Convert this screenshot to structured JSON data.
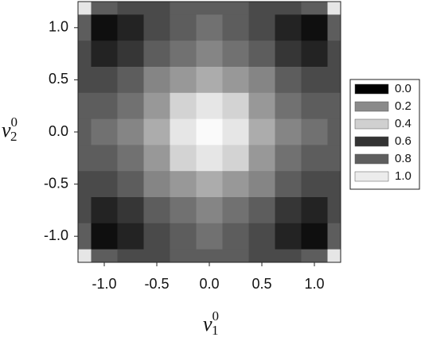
{
  "chart_data": {
    "type": "contour",
    "xlabel": {
      "text": "v",
      "sub": "1",
      "sup": "0"
    },
    "ylabel": {
      "text": "v",
      "sub": "2",
      "sup": "0"
    },
    "x": [
      -1.25,
      -1,
      -0.75,
      -0.5,
      -0.25,
      0,
      0.25,
      0.5,
      0.75,
      1,
      1.25
    ],
    "y": [
      1.25,
      1,
      0.75,
      0.5,
      0.25,
      0,
      -0.25,
      -0.5,
      -0.75,
      -1,
      -1.25
    ],
    "z": [
      [
        0.95,
        0.4,
        0.25,
        0.3,
        0.36,
        0.4,
        0.36,
        0.3,
        0.25,
        0.4,
        0.95
      ],
      [
        0.4,
        0.05,
        0.1,
        0.25,
        0.38,
        0.42,
        0.38,
        0.25,
        0.1,
        0.05,
        0.4
      ],
      [
        0.25,
        0.1,
        0.18,
        0.35,
        0.48,
        0.52,
        0.48,
        0.35,
        0.18,
        0.1,
        0.25
      ],
      [
        0.3,
        0.25,
        0.35,
        0.52,
        0.66,
        0.72,
        0.66,
        0.52,
        0.35,
        0.25,
        0.3
      ],
      [
        0.36,
        0.38,
        0.48,
        0.66,
        0.85,
        0.92,
        0.85,
        0.66,
        0.48,
        0.38,
        0.36
      ],
      [
        0.4,
        0.42,
        0.52,
        0.72,
        0.92,
        1.0,
        0.92,
        0.72,
        0.52,
        0.42,
        0.4
      ],
      [
        0.36,
        0.38,
        0.48,
        0.66,
        0.85,
        0.92,
        0.85,
        0.66,
        0.48,
        0.38,
        0.36
      ],
      [
        0.3,
        0.25,
        0.35,
        0.52,
        0.66,
        0.72,
        0.66,
        0.52,
        0.35,
        0.25,
        0.3
      ],
      [
        0.25,
        0.1,
        0.18,
        0.35,
        0.48,
        0.52,
        0.48,
        0.35,
        0.18,
        0.1,
        0.25
      ],
      [
        0.4,
        0.05,
        0.1,
        0.25,
        0.38,
        0.42,
        0.38,
        0.25,
        0.1,
        0.05,
        0.4
      ],
      [
        0.95,
        0.4,
        0.25,
        0.3,
        0.36,
        0.4,
        0.36,
        0.3,
        0.25,
        0.4,
        0.95
      ]
    ],
    "xlim": [
      -1.25,
      1.25
    ],
    "ylim": [
      -1.25,
      1.25
    ],
    "xticks": [
      {
        "value": -1,
        "label": "-1.0"
      },
      -0.5,
      {
        "value": 0,
        "label": "0.0"
      },
      0.5,
      {
        "value": 1,
        "label": "1.0"
      }
    ],
    "yticks": [
      {
        "value": -1,
        "label": "-1.0"
      },
      -0.5,
      {
        "value": 0,
        "label": "0.0"
      },
      0.5,
      {
        "value": 1,
        "label": "1.0"
      }
    ],
    "legend": [
      {
        "label": "0.0",
        "color": "#000000"
      },
      {
        "label": "0.2",
        "color": "#8a8a8a"
      },
      {
        "label": "0.4",
        "color": "#d0d0d0"
      },
      {
        "label": "0.6",
        "color": "#333333"
      },
      {
        "label": "0.8",
        "color": "#5e5e5e"
      },
      {
        "label": "1.0",
        "color": "#ececec"
      }
    ],
    "legend_position": "right"
  }
}
